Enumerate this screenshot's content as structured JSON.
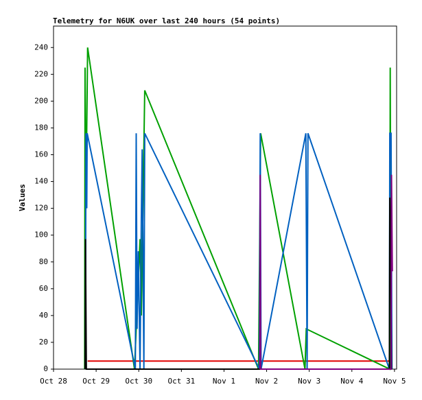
{
  "chart_data": {
    "type": "line",
    "title": "Telemetry for N6UK over last 240 hours (54 points)",
    "y_label": "Values",
    "xlim": [
      0,
      8.05
    ],
    "xticks": [
      {
        "value": 0,
        "label": "Oct 28"
      },
      {
        "value": 1,
        "label": "Oct 29"
      },
      {
        "value": 2,
        "label": "Oct 30"
      },
      {
        "value": 3,
        "label": "Oct 31"
      },
      {
        "value": 4,
        "label": "Nov 1"
      },
      {
        "value": 5,
        "label": "Nov 2"
      },
      {
        "value": 6,
        "label": "Nov 3"
      },
      {
        "value": 7,
        "label": "Nov 4"
      },
      {
        "value": 8,
        "label": "Nov 5"
      }
    ],
    "ylim": [
      0,
      256
    ],
    "yticks": [
      0,
      20,
      40,
      60,
      80,
      100,
      120,
      140,
      160,
      180,
      200,
      220,
      240
    ],
    "series": [
      {
        "color": "#e00000",
        "x": [
          0.8,
          7.95
        ],
        "values": [
          6,
          6
        ]
      },
      {
        "color": "#00a000",
        "x": [
          0.73,
          0.74,
          0.76,
          0.8,
          1.9,
          2.03,
          2.06,
          2.14,
          4.81,
          4.86,
          5.9,
          5.93,
          7.89,
          7.9,
          7.92
        ],
        "values": [
          0,
          225,
          120,
          240,
          0,
          97,
          40,
          208,
          0,
          176,
          0,
          30,
          0,
          225,
          0
        ]
      },
      {
        "color": "#0060c0",
        "x": [
          0.75,
          0.76,
          0.78,
          0.79,
          1.92,
          1.94,
          1.96,
          1.99,
          2.03,
          2.06,
          2.08,
          2.12,
          2.14,
          4.83,
          4.85,
          4.87,
          5.92,
          5.95,
          5.97,
          7.88,
          7.89,
          7.92,
          7.94
        ],
        "values": [
          0,
          176,
          120,
          176,
          0,
          176,
          30,
          88,
          0,
          113,
          164,
          0,
          176,
          0,
          176,
          0,
          176,
          0,
          176,
          0,
          176,
          176,
          0
        ]
      },
      {
        "color": "#000000",
        "x": [
          0.74,
          0.75,
          0.77,
          7.88,
          7.89,
          7.91,
          7.93
        ],
        "values": [
          0,
          97,
          0,
          0,
          128,
          97,
          0
        ]
      },
      {
        "color": "#800080",
        "x": [
          4.84,
          4.85,
          4.86,
          7.92,
          7.93,
          7.95
        ],
        "values": [
          0,
          145,
          0,
          0,
          145,
          73
        ]
      }
    ]
  }
}
